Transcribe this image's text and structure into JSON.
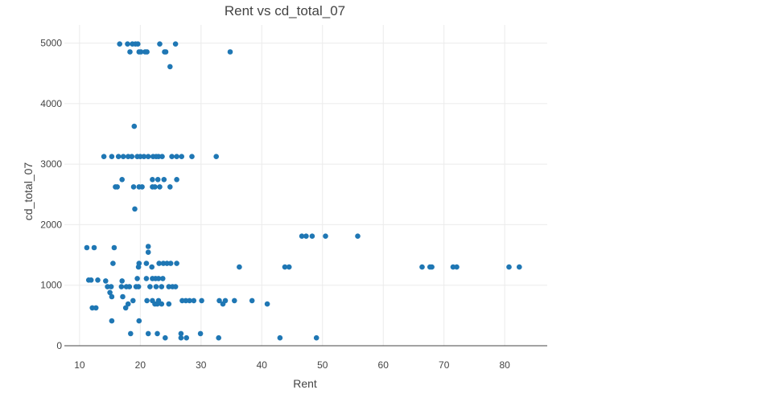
{
  "chart_data": {
    "type": "scatter",
    "title": "Rent vs cd_total_07",
    "xlabel": "Rent",
    "ylabel": "cd_total_07",
    "xlim": [
      7.5,
      87
    ],
    "ylim": [
      0,
      5300
    ],
    "xticks": [
      "10",
      "20",
      "30",
      "40",
      "50",
      "60",
      "70",
      "80"
    ],
    "yticks": [
      "0",
      "1000",
      "2000",
      "3000",
      "4000",
      "5000"
    ],
    "grid": true,
    "marker_color": "#1f77b4",
    "series": [
      {
        "points": [
          [
            16.6,
            4985
          ],
          [
            17.9,
            4985
          ],
          [
            18.7,
            4985
          ],
          [
            19.2,
            4985
          ],
          [
            19.6,
            4985
          ],
          [
            23.2,
            4985
          ],
          [
            25.8,
            4985
          ],
          [
            18.3,
            4855
          ],
          [
            19.8,
            4855
          ],
          [
            20.1,
            4855
          ],
          [
            20.8,
            4855
          ],
          [
            21.1,
            4855
          ],
          [
            24.0,
            4855
          ],
          [
            24.2,
            4855
          ],
          [
            34.8,
            4855
          ],
          [
            24.9,
            4610
          ],
          [
            19.0,
            3625
          ],
          [
            14.0,
            3125
          ],
          [
            15.3,
            3125
          ],
          [
            16.4,
            3125
          ],
          [
            17.2,
            3125
          ],
          [
            18.0,
            3125
          ],
          [
            18.6,
            3125
          ],
          [
            19.5,
            3125
          ],
          [
            20.0,
            3125
          ],
          [
            20.6,
            3125
          ],
          [
            21.3,
            3125
          ],
          [
            22.1,
            3125
          ],
          [
            22.6,
            3125
          ],
          [
            23.0,
            3125
          ],
          [
            23.6,
            3125
          ],
          [
            25.2,
            3125
          ],
          [
            26.0,
            3125
          ],
          [
            26.8,
            3125
          ],
          [
            28.5,
            3125
          ],
          [
            32.5,
            3125
          ],
          [
            17.0,
            2745
          ],
          [
            22.0,
            2745
          ],
          [
            22.9,
            2745
          ],
          [
            23.9,
            2745
          ],
          [
            26.0,
            2745
          ],
          [
            15.9,
            2625
          ],
          [
            16.2,
            2625
          ],
          [
            18.9,
            2625
          ],
          [
            19.8,
            2625
          ],
          [
            20.3,
            2625
          ],
          [
            22.0,
            2625
          ],
          [
            22.4,
            2625
          ],
          [
            23.2,
            2625
          ],
          [
            24.9,
            2625
          ],
          [
            19.1,
            2260
          ],
          [
            46.6,
            1810
          ],
          [
            47.3,
            1810
          ],
          [
            48.3,
            1810
          ],
          [
            50.5,
            1810
          ],
          [
            55.8,
            1810
          ],
          [
            11.2,
            1620
          ],
          [
            12.4,
            1620
          ],
          [
            15.7,
            1620
          ],
          [
            21.3,
            1640
          ],
          [
            21.3,
            1545
          ],
          [
            15.5,
            1360
          ],
          [
            19.8,
            1360
          ],
          [
            21.0,
            1360
          ],
          [
            23.1,
            1360
          ],
          [
            23.8,
            1360
          ],
          [
            24.4,
            1360
          ],
          [
            25.0,
            1360
          ],
          [
            26.0,
            1360
          ],
          [
            19.7,
            1300
          ],
          [
            21.9,
            1300
          ],
          [
            36.3,
            1300
          ],
          [
            43.8,
            1300
          ],
          [
            44.5,
            1300
          ],
          [
            66.4,
            1300
          ],
          [
            67.7,
            1300
          ],
          [
            68.0,
            1300
          ],
          [
            71.5,
            1300
          ],
          [
            72.1,
            1300
          ],
          [
            80.7,
            1300
          ],
          [
            82.4,
            1300
          ],
          [
            11.5,
            1085
          ],
          [
            11.9,
            1085
          ],
          [
            13.0,
            1085
          ],
          [
            14.3,
            1070
          ],
          [
            17.0,
            1070
          ],
          [
            19.5,
            1110
          ],
          [
            21.0,
            1110
          ],
          [
            22.0,
            1110
          ],
          [
            22.5,
            1110
          ],
          [
            23.0,
            1110
          ],
          [
            23.7,
            1110
          ],
          [
            14.6,
            975
          ],
          [
            15.2,
            975
          ],
          [
            16.9,
            975
          ],
          [
            17.7,
            975
          ],
          [
            18.2,
            975
          ],
          [
            19.3,
            975
          ],
          [
            19.7,
            975
          ],
          [
            21.6,
            975
          ],
          [
            22.6,
            975
          ],
          [
            23.5,
            975
          ],
          [
            24.7,
            975
          ],
          [
            25.3,
            975
          ],
          [
            25.8,
            975
          ],
          [
            15.0,
            880
          ],
          [
            15.3,
            810
          ],
          [
            17.1,
            810
          ],
          [
            18.8,
            745
          ],
          [
            21.1,
            745
          ],
          [
            22.0,
            745
          ],
          [
            23.0,
            745
          ],
          [
            26.9,
            745
          ],
          [
            27.5,
            745
          ],
          [
            28.1,
            745
          ],
          [
            28.8,
            745
          ],
          [
            30.1,
            745
          ],
          [
            33.0,
            745
          ],
          [
            34.0,
            745
          ],
          [
            35.5,
            745
          ],
          [
            38.4,
            745
          ],
          [
            18.0,
            690
          ],
          [
            22.4,
            690
          ],
          [
            22.8,
            690
          ],
          [
            23.5,
            690
          ],
          [
            24.7,
            690
          ],
          [
            33.6,
            690
          ],
          [
            40.9,
            690
          ],
          [
            12.1,
            625
          ],
          [
            12.7,
            625
          ],
          [
            17.6,
            625
          ],
          [
            15.3,
            410
          ],
          [
            19.8,
            410
          ],
          [
            18.4,
            200
          ],
          [
            21.3,
            200
          ],
          [
            22.8,
            200
          ],
          [
            26.7,
            200
          ],
          [
            29.9,
            200
          ],
          [
            24.1,
            130
          ],
          [
            26.7,
            130
          ],
          [
            27.6,
            130
          ],
          [
            32.9,
            130
          ],
          [
            43.0,
            130
          ],
          [
            49.0,
            130
          ]
        ]
      }
    ]
  }
}
